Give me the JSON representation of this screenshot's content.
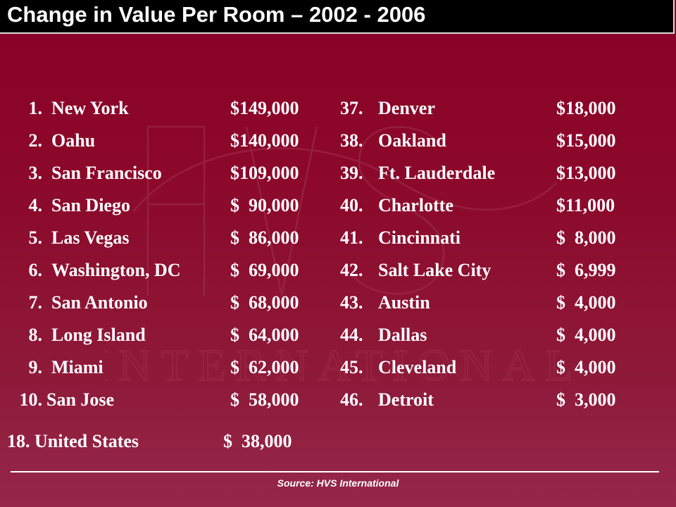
{
  "title": "Change in Value Per Room – 2002 - 2006",
  "left_list": [
    {
      "rank": "1.",
      "city": "New York",
      "value": "$149,000"
    },
    {
      "rank": "2.",
      "city": "Oahu",
      "value": "$140,000"
    },
    {
      "rank": "3.",
      "city": "San Francisco",
      "value": "$109,000"
    },
    {
      "rank": "4.",
      "city": "San Diego",
      "value": "$  90,000"
    },
    {
      "rank": "5.",
      "city": "Las Vegas",
      "value": "$  86,000"
    },
    {
      "rank": "6.",
      "city": "Washington, DC",
      "value": "$  69,000"
    },
    {
      "rank": "7.",
      "city": "San Antonio",
      "value": "$  68,000"
    },
    {
      "rank": "8.",
      "city": "Long Island",
      "value": "$  64,000"
    },
    {
      "rank": "9.",
      "city": "Miami",
      "value": "$  62,000"
    },
    {
      "rank": "10.",
      "city": "San Jose",
      "value": "$  58,000"
    }
  ],
  "right_list": [
    {
      "rank": "37.",
      "city": "Denver",
      "value": "$18,000"
    },
    {
      "rank": "38.",
      "city": "Oakland",
      "value": "$15,000"
    },
    {
      "rank": "39.",
      "city": "Ft. Lauderdale",
      "value": "$13,000"
    },
    {
      "rank": "40.",
      "city": "Charlotte",
      "value": "$11,000"
    },
    {
      "rank": "41.",
      "city": "Cincinnati",
      "value": "$  8,000"
    },
    {
      "rank": "42.",
      "city": "Salt Lake City",
      "value": "$  6,999"
    },
    {
      "rank": "43.",
      "city": "Austin",
      "value": "$  4,000"
    },
    {
      "rank": "44.",
      "city": "Dallas",
      "value": "$  4,000"
    },
    {
      "rank": "45.",
      "city": "Cleveland",
      "value": "$  4,000"
    },
    {
      "rank": "46.",
      "city": "Detroit",
      "value": "$  3,000"
    }
  ],
  "us_row": {
    "label": "18. United States",
    "value": "$  38,000"
  },
  "watermark": {
    "text": "INTERNATIONAL",
    "icon": "hvs-logo-watermark"
  },
  "source": "Source:  HVS International",
  "colors": {
    "background": "#8a0026",
    "title_bar": "#000000",
    "text": "#ffffff"
  }
}
